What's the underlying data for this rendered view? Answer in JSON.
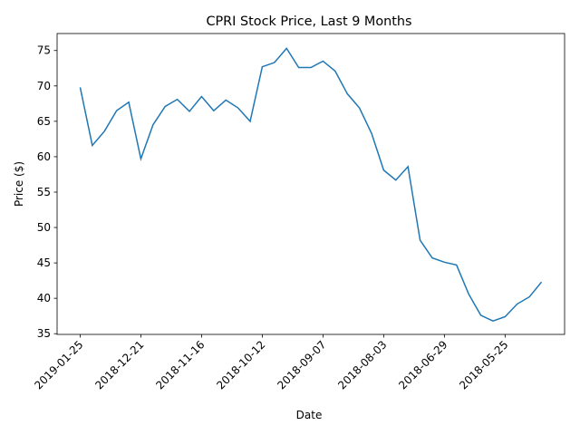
{
  "chart_data": {
    "type": "line",
    "title": "CPRI Stock Price, Last 9 Months",
    "x_label": "Date",
    "y_label": "Price ($)",
    "categories": [
      "2019-01-25",
      null,
      null,
      null,
      null,
      "2018-12-21",
      null,
      null,
      null,
      null,
      "2018-11-16",
      null,
      null,
      null,
      null,
      "2018-10-12",
      null,
      null,
      null,
      null,
      "2018-09-07",
      null,
      null,
      null,
      null,
      "2018-08-03",
      null,
      null,
      null,
      null,
      "2018-06-29",
      null,
      null,
      null,
      null,
      "2018-05-25",
      null,
      null,
      null
    ],
    "series": [
      {
        "name": "CPRI",
        "color": "#1f77b4",
        "values": [
          69.8,
          61.6,
          63.6,
          66.5,
          67.7,
          59.7,
          64.5,
          67.1,
          68.1,
          66.4,
          68.5,
          66.5,
          68.0,
          66.9,
          65.0,
          72.7,
          73.3,
          75.3,
          72.6,
          72.6,
          73.5,
          72.1,
          68.9,
          66.9,
          63.3,
          58.1,
          56.7,
          58.6,
          48.2,
          45.7,
          45.1,
          44.7,
          40.6,
          37.6,
          36.8,
          37.4,
          39.2,
          40.2,
          42.3
        ]
      }
    ],
    "ylim": [
      34.9,
      77.4
    ],
    "yticks": [
      35,
      40,
      45,
      50,
      55,
      60,
      65,
      70,
      75
    ],
    "grid": false
  }
}
